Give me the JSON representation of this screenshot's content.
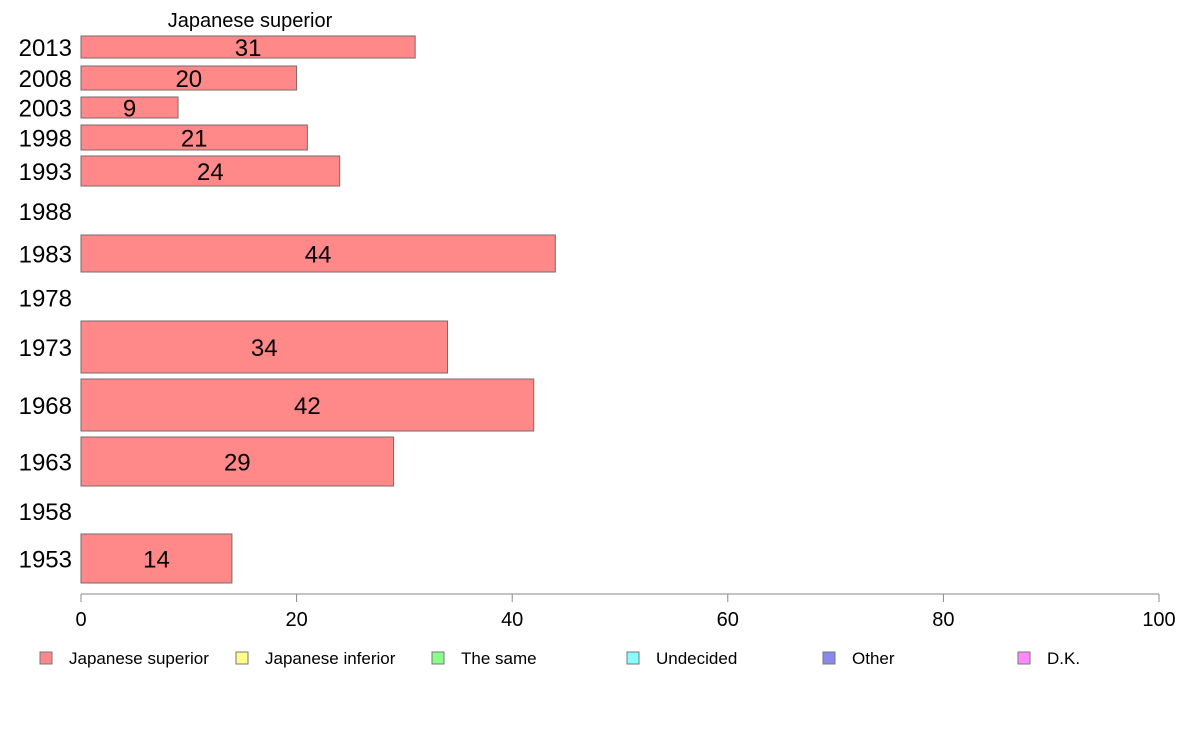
{
  "chart_data": {
    "type": "bar",
    "orientation": "horizontal",
    "title": "Japanese superior",
    "categories": [
      "2013",
      "2008",
      "2003",
      "1998",
      "1993",
      "1988",
      "1983",
      "1978",
      "1973",
      "1968",
      "1963",
      "1958",
      "1953"
    ],
    "series": [
      {
        "name": "Japanese superior",
        "color": "#ff8888",
        "values": [
          31,
          20,
          9,
          21,
          24,
          null,
          44,
          null,
          34,
          42,
          29,
          null,
          14
        ]
      }
    ],
    "xlim": [
      0,
      100
    ],
    "xticks": [
      0,
      20,
      40,
      60,
      80,
      100
    ],
    "legend": {
      "position": "bottom",
      "items": [
        {
          "label": "Japanese superior",
          "color": "#ff8888"
        },
        {
          "label": "Japanese inferior",
          "color": "#ffff88"
        },
        {
          "label": "The same",
          "color": "#88ff88"
        },
        {
          "label": "Undecided",
          "color": "#88ffff"
        },
        {
          "label": "Other",
          "color": "#8888ee"
        },
        {
          "label": "D.K.",
          "color": "#ff88ff"
        }
      ]
    },
    "grid": false
  }
}
